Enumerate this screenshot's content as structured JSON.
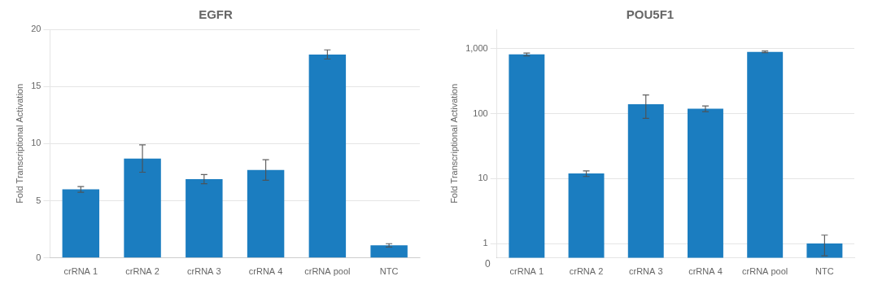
{
  "chart_data": [
    {
      "type": "bar",
      "title": "EGFR",
      "categories": [
        "crRNA 1",
        "crRNA 2",
        "crRNA 3",
        "crRNA 4",
        "crRNA pool",
        "NTC"
      ],
      "values": [
        6.0,
        8.7,
        6.9,
        7.7,
        17.8,
        1.1
      ],
      "errors": [
        0.25,
        1.2,
        0.4,
        0.9,
        0.4,
        0.15
      ],
      "color": "#1b7dc0",
      "ylabel": "Fold Transcriptional Activation",
      "ylim": [
        0,
        20
      ],
      "yticks": [
        0,
        5,
        10,
        15,
        20
      ],
      "grid": true
    },
    {
      "type": "bar",
      "title": "POU5F1",
      "categories": [
        "crRNA 1",
        "crRNA 2",
        "crRNA 3",
        "crRNA 4",
        "crRNA pool",
        "NTC"
      ],
      "values": [
        820,
        12,
        140,
        120,
        900,
        1.0
      ],
      "errors_plus": [
        40,
        1.2,
        55,
        12,
        25,
        0.35
      ],
      "errors_minus": [
        40,
        1.2,
        55,
        12,
        25,
        0.35
      ],
      "color": "#1b7dc0",
      "ylabel": "Fold Transcriptional Activation",
      "log": "y",
      "ylim": [
        0.6,
        2000
      ],
      "yticks": [
        1,
        10,
        100,
        {
          "value": 1000,
          "label": "1,000"
        }
      ],
      "annotations": [
        {
          "text": "0"
        }
      ],
      "grid": true
    }
  ]
}
